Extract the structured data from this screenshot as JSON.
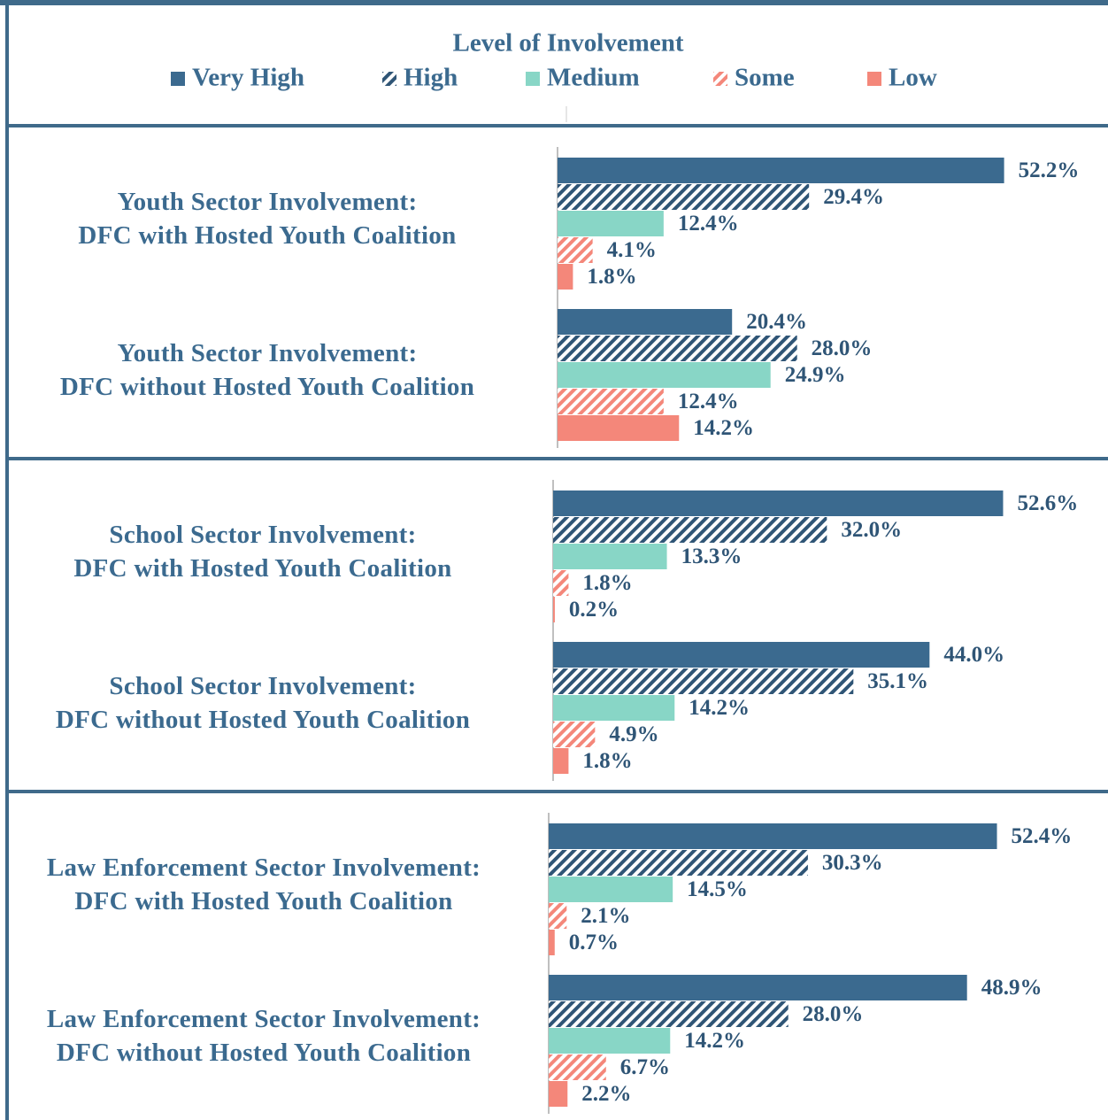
{
  "chart_data": {
    "type": "bar",
    "orientation": "horizontal",
    "legend_title": "Level of Involvement",
    "legend_position": "top",
    "categories": [
      "Youth Sector Involvement:\nDFC with Hosted Youth Coalition",
      "Youth Sector Involvement:\nDFC without Hosted Youth Coalition",
      "School Sector Involvement:\nDFC with Hosted Youth Coalition",
      "School Sector Involvement:\nDFC without Hosted Youth Coalition",
      "Law Enforcement Sector Involvement:\nDFC with Hosted Youth Coalition",
      "Law Enforcement Sector Involvement:\nDFC without Hosted Youth Coalition"
    ],
    "xlim": [
      0,
      60
    ],
    "series": [
      {
        "name": "Very High",
        "color": "#3b6a8f",
        "hatch": false,
        "values": [
          52.2,
          20.4,
          52.6,
          44.0,
          52.4,
          48.9
        ],
        "value_labels": [
          "52.2%",
          "20.4%",
          "52.6%",
          "44.0%",
          "52.4%",
          "48.9%"
        ]
      },
      {
        "name": "High",
        "color": "#2f5576",
        "hatch": true,
        "values": [
          29.4,
          28.0,
          32.0,
          35.1,
          30.3,
          28.0
        ],
        "value_labels": [
          "29.4%",
          "28.0%",
          "32.0%",
          "35.1%",
          "30.3%",
          "28.0%"
        ]
      },
      {
        "name": "Medium",
        "color": "#88d6c6",
        "hatch": false,
        "values": [
          12.4,
          24.9,
          13.3,
          14.2,
          14.5,
          14.2
        ],
        "value_labels": [
          "12.4%",
          "24.9%",
          "13.3%",
          "14.2%",
          "14.5%",
          "14.2%"
        ]
      },
      {
        "name": "Some",
        "color": "#f4877a",
        "hatch": true,
        "values": [
          4.1,
          12.4,
          1.8,
          4.9,
          2.1,
          6.7
        ],
        "value_labels": [
          "4.1%",
          "12.4%",
          "1.8%",
          "4.9%",
          "2.1%",
          "6.7%"
        ]
      },
      {
        "name": "Low",
        "color": "#f4877a",
        "hatch": false,
        "values": [
          1.8,
          14.2,
          0.2,
          1.8,
          0.7,
          2.2
        ],
        "value_labels": [
          "1.8%",
          "14.2%",
          "0.2%",
          "1.8%",
          "0.7%",
          "2.2%"
        ]
      }
    ]
  }
}
